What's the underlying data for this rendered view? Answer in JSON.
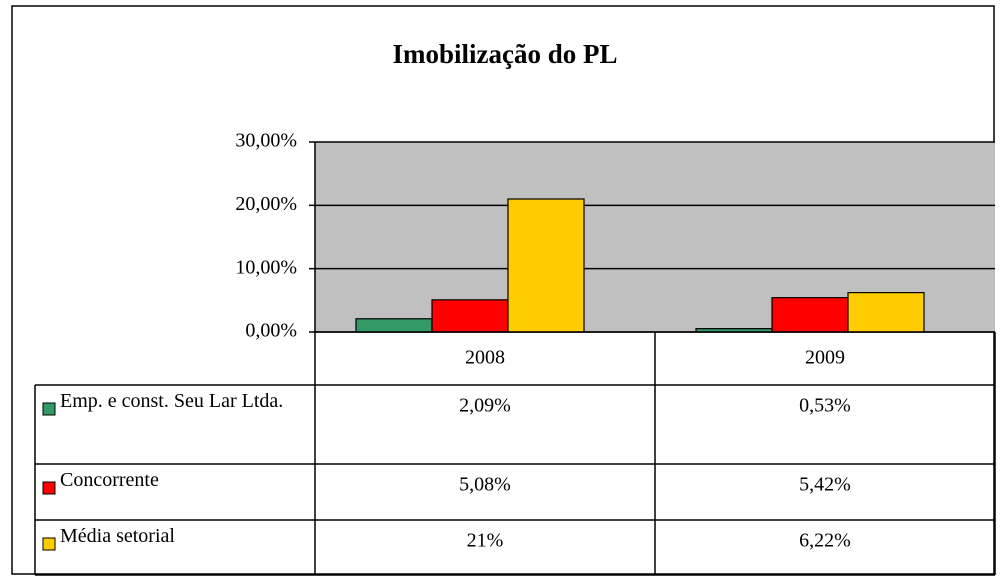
{
  "chart_data": {
    "type": "bar",
    "title": "Imobilização do PL",
    "categories": [
      "2008",
      "2009"
    ],
    "series": [
      {
        "name": "Emp. e const. Seu Lar Ltda.",
        "color": "#339966",
        "values": [
          2.09,
          0.53
        ],
        "value_labels": [
          "2,09%",
          "0,53%"
        ]
      },
      {
        "name": "Concorrente",
        "color": "#ff0000",
        "values": [
          5.08,
          5.42
        ],
        "value_labels": [
          "5,08%",
          "5,42%"
        ]
      },
      {
        "name": "Média setorial",
        "color": "#ffcc00",
        "values": [
          21,
          6.22
        ],
        "value_labels": [
          "21%",
          "6,22%"
        ]
      }
    ],
    "ylim": [
      0,
      30
    ],
    "yticks": [
      {
        "value": 0,
        "label": "0,00%"
      },
      {
        "value": 10,
        "label": "10,00%"
      },
      {
        "value": 20,
        "label": "20,00%"
      },
      {
        "value": 30,
        "label": "30,00%"
      }
    ],
    "grid": true,
    "plot_background": "#c0c0c0"
  }
}
